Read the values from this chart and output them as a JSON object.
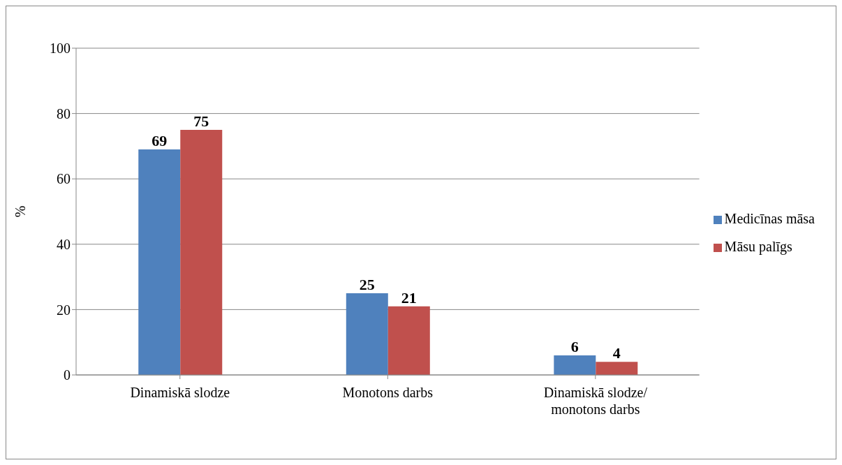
{
  "chart_data": {
    "type": "bar",
    "ylabel": "%",
    "categories": [
      "Dinamiskā slodze",
      "Monotons darbs",
      "Dinamiskā slodze/monotons darbs"
    ],
    "series": [
      {
        "name": "Medicīnas māsa",
        "color": "#4f81bd",
        "values": [
          69,
          25,
          6
        ]
      },
      {
        "name": "Māsu palīgs",
        "color": "#c0504d",
        "values": [
          75,
          21,
          4
        ]
      }
    ],
    "ylim": [
      0,
      100
    ],
    "yticks": [
      0,
      20,
      40,
      60,
      80,
      100
    ],
    "grid": "y",
    "legend": "right",
    "data_labels": true
  }
}
